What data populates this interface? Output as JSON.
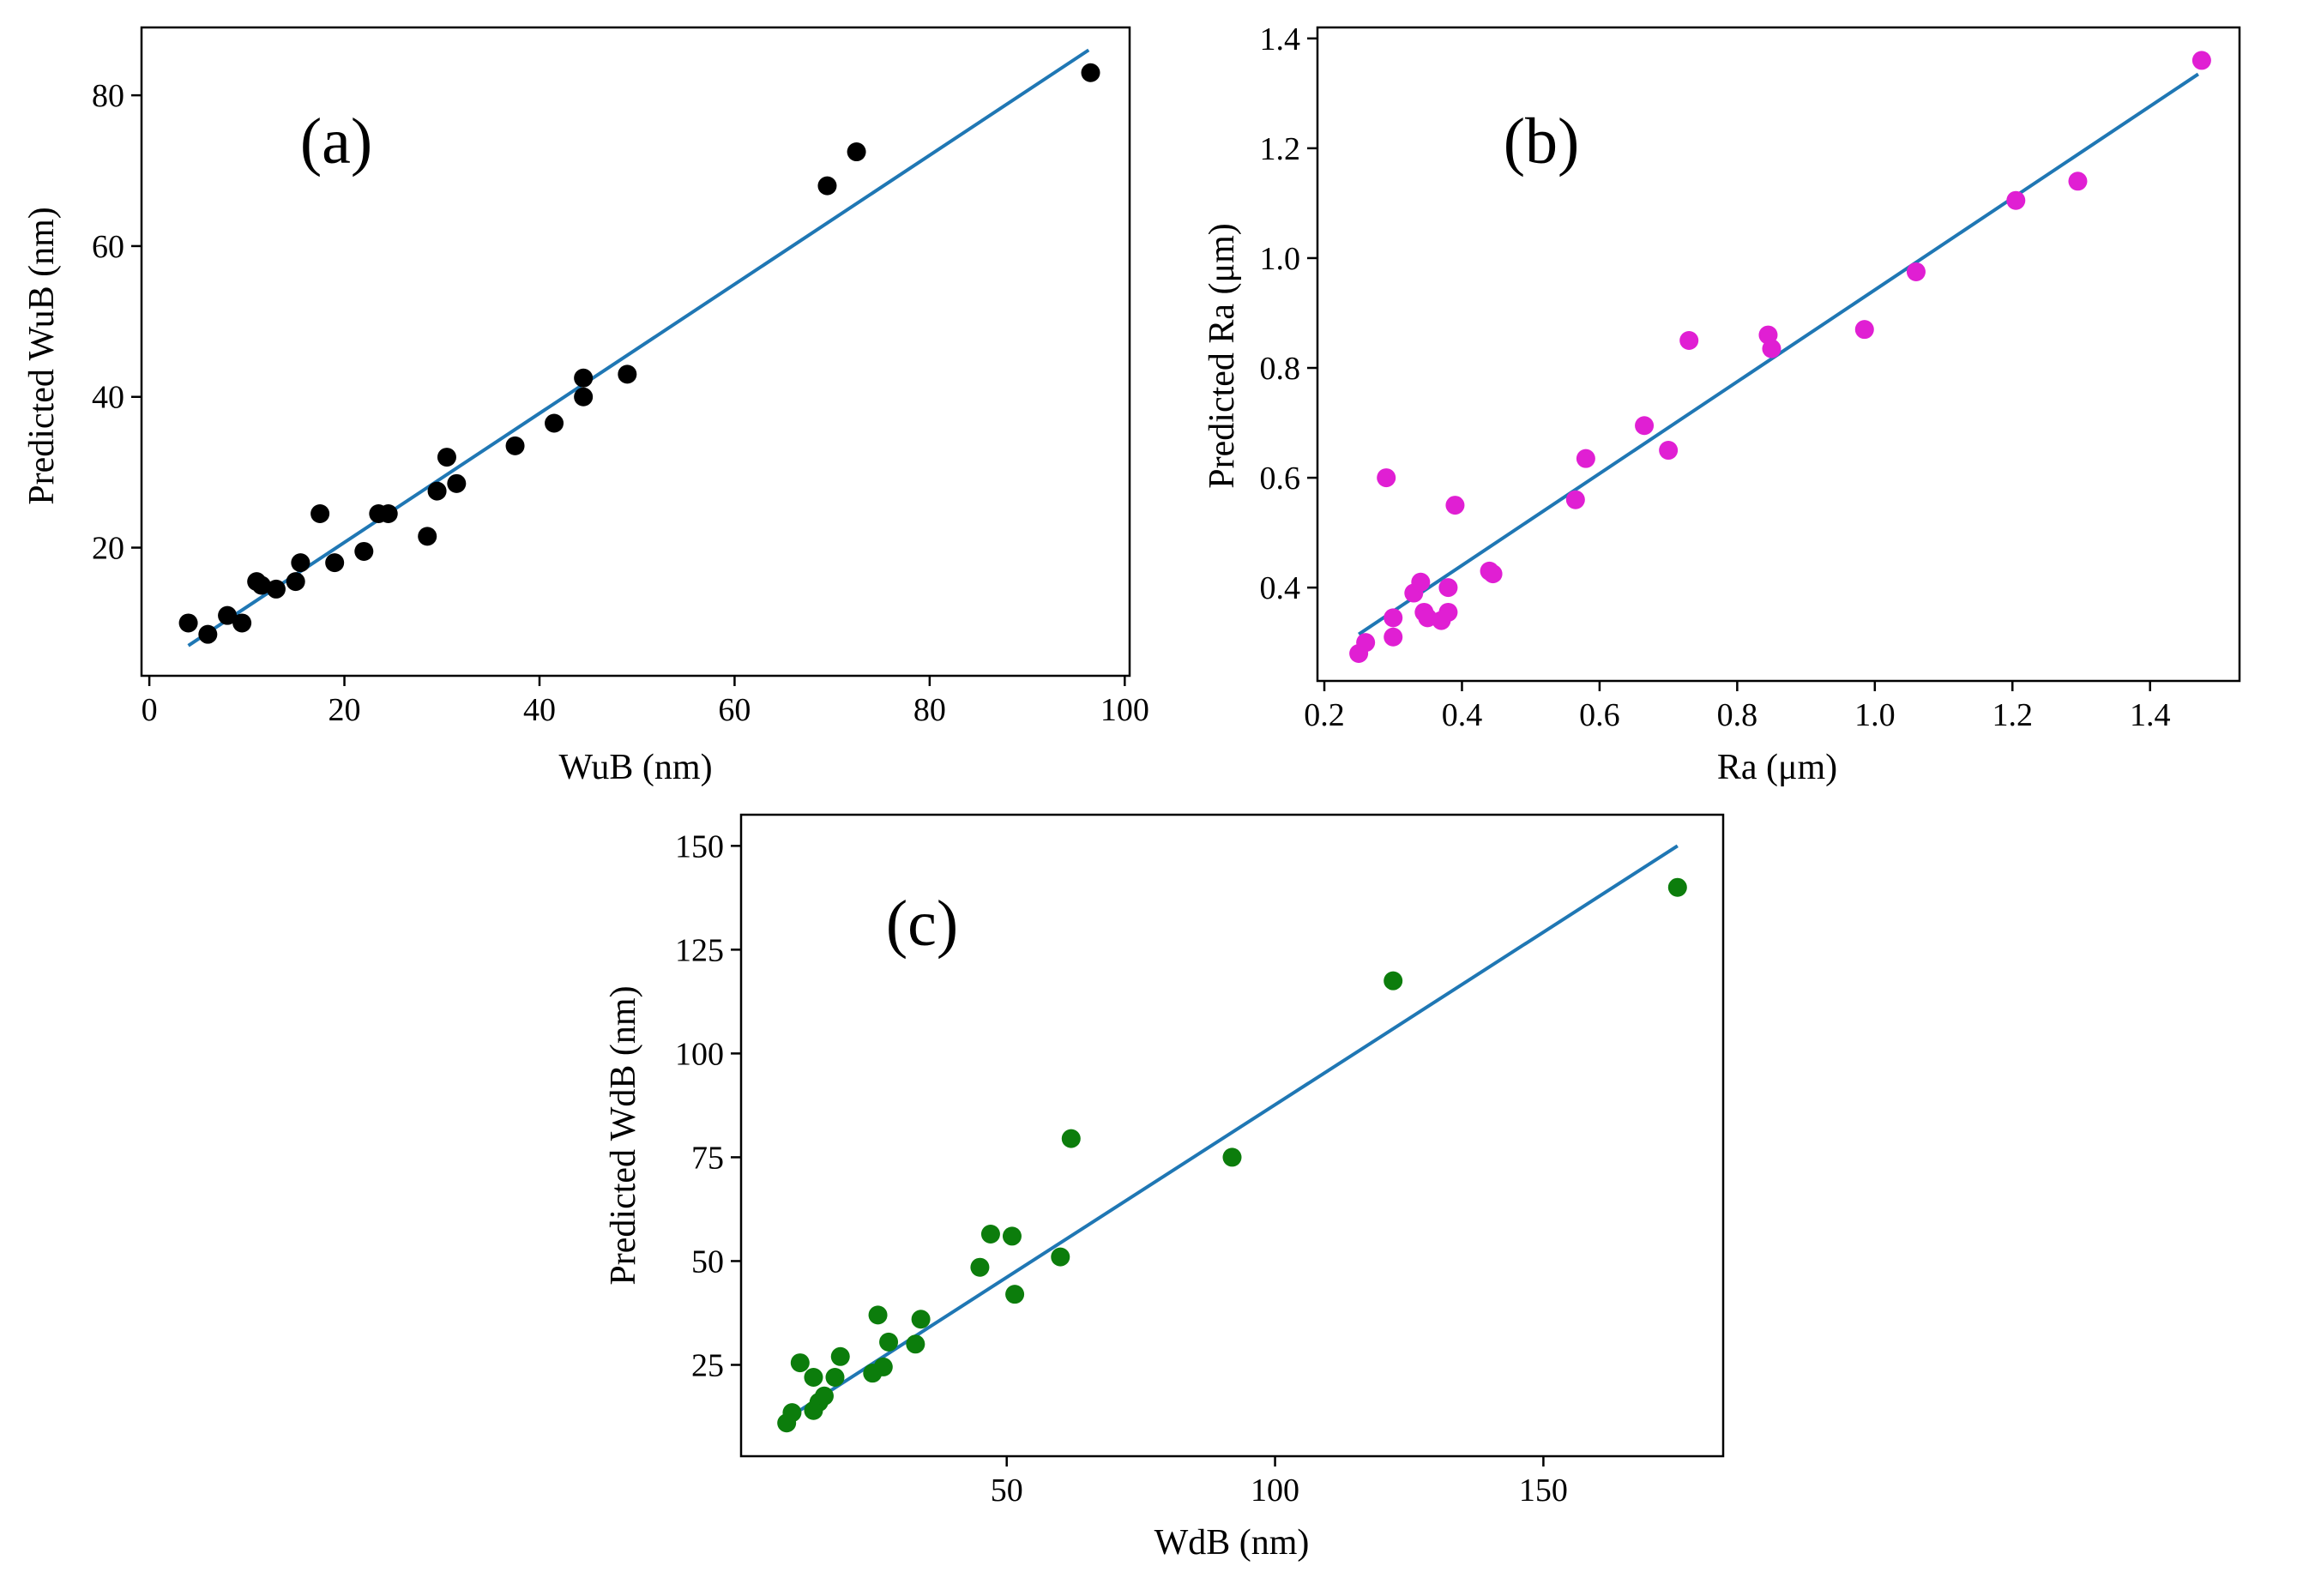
{
  "figure": {
    "line_color": "#1f77b4"
  },
  "chart_data": [
    {
      "id": "a",
      "type": "scatter",
      "panel_label": "(a)",
      "xlabel": "WuB (nm)",
      "ylabel": "Predicted WuB (nm)",
      "xlim": [
        -0.8,
        100.5
      ],
      "ylim": [
        3.0,
        89.0
      ],
      "xticks": [
        0,
        20,
        40,
        60,
        80,
        100
      ],
      "yticks": [
        20,
        40,
        60,
        80
      ],
      "tick_decimals": 0,
      "point_color": "#000000",
      "fit_line": {
        "x": [
          4.0,
          96.3
        ],
        "y": [
          7.0,
          86.0
        ]
      },
      "points": [
        [
          4,
          10
        ],
        [
          6,
          8.5
        ],
        [
          8,
          11
        ],
        [
          9.5,
          10
        ],
        [
          11,
          15.5
        ],
        [
          11.5,
          15
        ],
        [
          13,
          14.5
        ],
        [
          15,
          15.5
        ],
        [
          15.5,
          18
        ],
        [
          17.5,
          24.5
        ],
        [
          19,
          18
        ],
        [
          22,
          19.5
        ],
        [
          23.5,
          24.5
        ],
        [
          24.5,
          24.5
        ],
        [
          28.5,
          21.5
        ],
        [
          29.5,
          27.5
        ],
        [
          30.5,
          32
        ],
        [
          31.5,
          28.5
        ],
        [
          37.5,
          33.5
        ],
        [
          41.5,
          36.5
        ],
        [
          44.5,
          42.5
        ],
        [
          44.5,
          40
        ],
        [
          49,
          43
        ],
        [
          69.5,
          68
        ],
        [
          72.5,
          72.5
        ],
        [
          96.5,
          83
        ]
      ]
    },
    {
      "id": "b",
      "type": "scatter",
      "panel_label": "(b)",
      "xlabel": "Ra (μm)",
      "ylabel": "Predicted Ra (μm)",
      "xlim": [
        0.19,
        1.53
      ],
      "ylim": [
        0.23,
        1.42
      ],
      "xticks": [
        0.2,
        0.4,
        0.6,
        0.8,
        1.0,
        1.2,
        1.4
      ],
      "yticks": [
        0.4,
        0.6,
        0.8,
        1.0,
        1.2,
        1.4
      ],
      "tick_decimals": 1,
      "point_color": "#e01fd3",
      "fit_line": {
        "x": [
          0.25,
          1.47
        ],
        "y": [
          0.315,
          1.335
        ]
      },
      "points": [
        [
          0.25,
          0.28
        ],
        [
          0.26,
          0.3
        ],
        [
          0.29,
          0.6
        ],
        [
          0.3,
          0.31
        ],
        [
          0.3,
          0.345
        ],
        [
          0.33,
          0.39
        ],
        [
          0.34,
          0.41
        ],
        [
          0.345,
          0.355
        ],
        [
          0.35,
          0.345
        ],
        [
          0.37,
          0.34
        ],
        [
          0.38,
          0.355
        ],
        [
          0.38,
          0.4
        ],
        [
          0.39,
          0.55
        ],
        [
          0.44,
          0.43
        ],
        [
          0.445,
          0.425
        ],
        [
          0.565,
          0.56
        ],
        [
          0.58,
          0.635
        ],
        [
          0.665,
          0.695
        ],
        [
          0.7,
          0.65
        ],
        [
          0.73,
          0.85
        ],
        [
          0.845,
          0.86
        ],
        [
          0.85,
          0.835
        ],
        [
          0.985,
          0.87
        ],
        [
          1.06,
          0.975
        ],
        [
          1.205,
          1.105
        ],
        [
          1.295,
          1.14
        ],
        [
          1.475,
          1.36
        ]
      ]
    },
    {
      "id": "c",
      "type": "scatter",
      "panel_label": "(c)",
      "xlabel": "WdB (nm)",
      "ylabel": "Predicted WdB (nm)",
      "xlim": [
        0.5,
        183.5
      ],
      "ylim": [
        3.0,
        157.5
      ],
      "xticks": [
        50,
        100,
        150
      ],
      "yticks": [
        25,
        50,
        75,
        100,
        125,
        150
      ],
      "tick_decimals": 0,
      "point_color": "#0c7d0c",
      "fit_line": {
        "x": [
          9.0,
          175.0
        ],
        "y": [
          12.0,
          150.0
        ]
      },
      "points": [
        [
          9,
          11
        ],
        [
          10,
          13.5
        ],
        [
          11.5,
          25.5
        ],
        [
          14,
          22
        ],
        [
          14,
          14
        ],
        [
          15,
          16
        ],
        [
          16,
          17.5
        ],
        [
          18,
          22
        ],
        [
          19,
          27
        ],
        [
          25,
          23
        ],
        [
          26,
          37
        ],
        [
          27,
          24.5
        ],
        [
          28,
          30.5
        ],
        [
          33,
          30
        ],
        [
          34,
          36
        ],
        [
          45,
          48.5
        ],
        [
          47,
          56.5
        ],
        [
          51,
          56
        ],
        [
          51.5,
          42
        ],
        [
          60,
          51
        ],
        [
          62,
          79.5
        ],
        [
          92,
          75
        ],
        [
          122,
          117.5
        ],
        [
          175,
          140
        ]
      ]
    }
  ]
}
